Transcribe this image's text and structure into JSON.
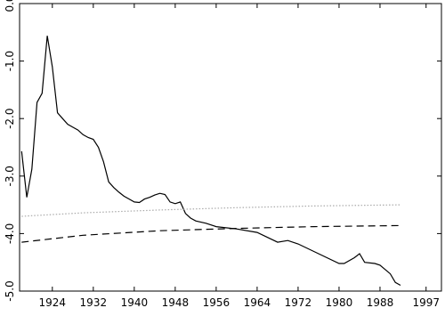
{
  "chart_data": {
    "type": "line",
    "xlim": [
      1917.6,
      2000
    ],
    "ylim": [
      -5,
      0
    ],
    "xticks": [
      1924,
      1932,
      1940,
      1948,
      1956,
      1964,
      1972,
      1980,
      1988,
      1997
    ],
    "yticks": [
      {
        "value": 0,
        "label": "0.0"
      },
      {
        "value": -1,
        "label": "-1.0"
      },
      {
        "value": -2,
        "label": "-2.0"
      },
      {
        "value": -3,
        "label": "-3.0"
      },
      {
        "value": -4,
        "label": "-4.0"
      },
      {
        "value": -5,
        "label": "-5.0"
      }
    ],
    "series": [
      {
        "style": "solid",
        "color": "#000000",
        "x": [
          1918,
          1919,
          1920,
          1921,
          1922,
          1923,
          1924,
          1925,
          1926,
          1927,
          1928,
          1929,
          1930,
          1931,
          1932,
          1933,
          1934,
          1935,
          1936,
          1937,
          1938,
          1939,
          1940,
          1941,
          1942,
          1943,
          1944,
          1945,
          1946,
          1947,
          1948,
          1949,
          1950,
          1951,
          1952,
          1954,
          1956,
          1960,
          1964,
          1968,
          1970,
          1972,
          1976,
          1980,
          1981,
          1983,
          1984,
          1985,
          1987,
          1988,
          1990,
          1991,
          1992
        ],
        "values": [
          -2.57,
          -3.37,
          -2.88,
          -1.72,
          -1.56,
          -0.56,
          -1.1,
          -1.9,
          -2.0,
          -2.1,
          -2.15,
          -2.2,
          -2.28,
          -2.33,
          -2.36,
          -2.5,
          -2.75,
          -3.1,
          -3.2,
          -3.28,
          -3.35,
          -3.4,
          -3.45,
          -3.46,
          -3.4,
          -3.37,
          -3.33,
          -3.3,
          -3.32,
          -3.45,
          -3.48,
          -3.45,
          -3.65,
          -3.73,
          -3.78,
          -3.82,
          -3.88,
          -3.92,
          -3.98,
          -4.15,
          -4.12,
          -4.18,
          -4.35,
          -4.52,
          -4.52,
          -4.42,
          -4.35,
          -4.5,
          -4.52,
          -4.55,
          -4.7,
          -4.85,
          -4.9
        ]
      },
      {
        "style": "dotted",
        "color": "#aaaaaa",
        "x": [
          1918,
          1930,
          1945,
          1960,
          1975,
          1992
        ],
        "values": [
          -3.7,
          -3.64,
          -3.59,
          -3.55,
          -3.52,
          -3.5
        ]
      },
      {
        "style": "dashed",
        "color": "#000000",
        "x": [
          1918,
          1930,
          1945,
          1960,
          1975,
          1992
        ],
        "values": [
          -4.15,
          -4.03,
          -3.95,
          -3.91,
          -3.88,
          -3.86
        ]
      }
    ]
  }
}
